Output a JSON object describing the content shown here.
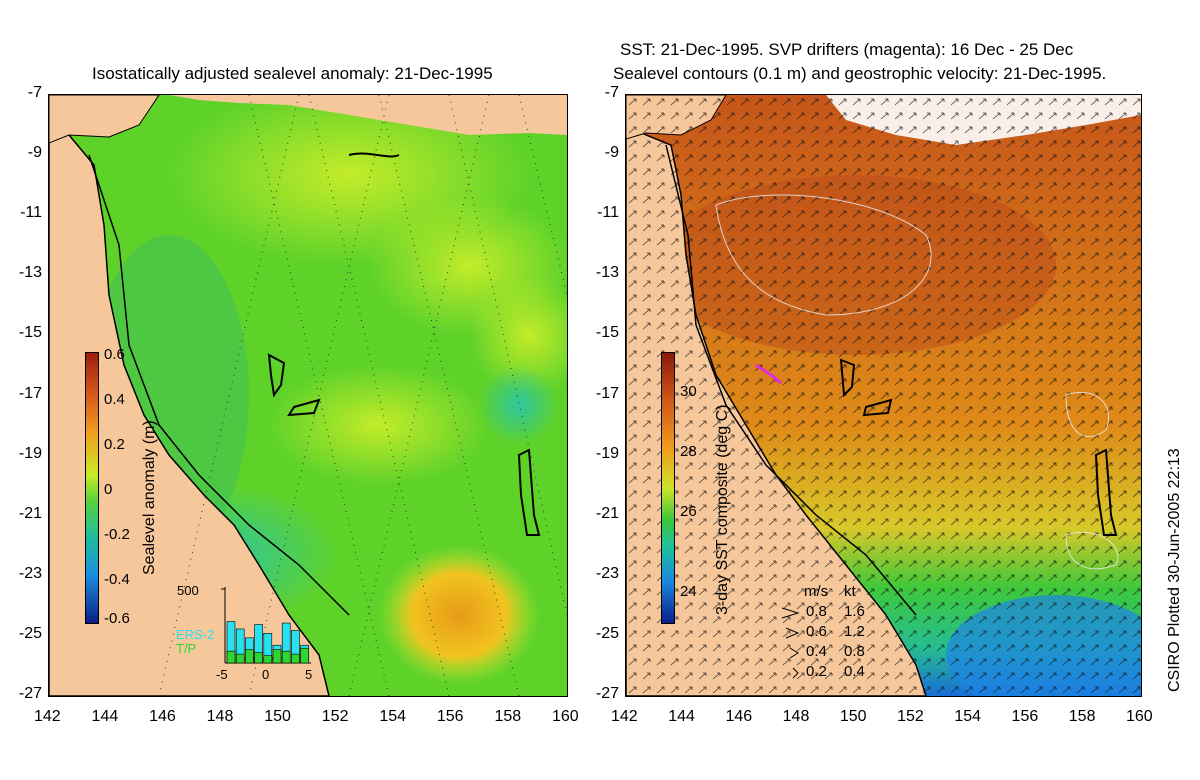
{
  "left_panel": {
    "title": "Isostatically adjusted sealevel anomaly: 21-Dec-1995",
    "colorbar_label": "Sealevel anomaly (m)",
    "colorbar_ticks": [
      "0.6",
      "0.4",
      "0.2",
      "0",
      "-0.2",
      "-0.4",
      "-0.6"
    ],
    "inset": {
      "ymax_label": "500",
      "xticks": [
        "-5",
        "0",
        "5"
      ],
      "series": [
        "ERS-2",
        "T/P"
      ],
      "series_colors": {
        "ERS-2": "#27e1f0",
        "T/P": "#2bd832"
      },
      "ers2_counts": [
        280,
        230,
        170,
        260,
        200,
        120,
        270,
        220,
        120
      ],
      "tp_counts": [
        80,
        60,
        90,
        70,
        50,
        90,
        80,
        60,
        100
      ]
    }
  },
  "right_panel": {
    "title_line1": "SST: 21-Dec-1995. SVP drifters (magenta): 16 Dec - 25 Dec",
    "title_line2": "Sealevel contours (0.1 m) and geostrophic velocity: 21-Dec-1995.",
    "colorbar_label": "3-day SST composite (deg C)",
    "colorbar_ticks": [
      "30",
      "28",
      "26",
      "24"
    ],
    "speed_legend": {
      "header_ms": "m/s",
      "header_kt": "kt",
      "rows": [
        [
          "0.8",
          "1.6"
        ],
        [
          "0.6",
          "1.2"
        ],
        [
          "0.4",
          "0.8"
        ],
        [
          "0.2",
          "0.4"
        ]
      ]
    }
  },
  "axes": {
    "y_ticks": [
      "-7",
      "-9",
      "-11",
      "-13",
      "-15",
      "-17",
      "-19",
      "-21",
      "-23",
      "-25",
      "-27"
    ],
    "x_ticks": [
      "142",
      "144",
      "146",
      "148",
      "150",
      "152",
      "154",
      "156",
      "158",
      "160"
    ]
  },
  "credit": "CSIRO Plotted 30-Jun-2005 22:13",
  "colors": {
    "land": "#f7c79c",
    "sla_green": "#5fd22a",
    "sst_orange": "#d9741b"
  }
}
